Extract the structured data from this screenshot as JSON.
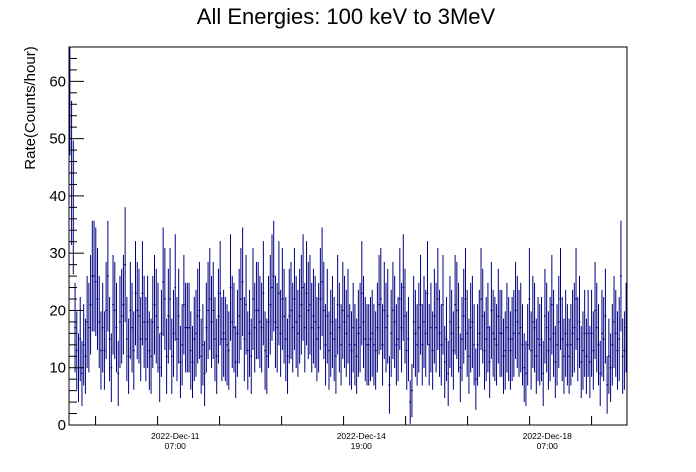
{
  "chart_data": {
    "type": "scatter",
    "title": "All Energies:  100 keV to 3MeV",
    "xlabel": "",
    "ylabel": "Rate(Counts/hour)",
    "x_unit": "hours since 2022-Dec-09 07:00",
    "xlim": [
      0,
      252
    ],
    "ylim": [
      0,
      66
    ],
    "y_ticks": [
      0,
      10,
      20,
      30,
      40,
      50,
      60
    ],
    "x_ticks": [
      {
        "at": 48,
        "date": "2022-Dec-11",
        "time": "07:00"
      },
      {
        "at": 132,
        "date": "2022-Dec-14",
        "time": "19:00"
      },
      {
        "at": 216,
        "date": "2022-Dec-18",
        "time": "07:00"
      }
    ],
    "marker_color": "#000080",
    "error_style": "poisson (sqrt(N)/hour)",
    "series": [
      {
        "values": [
          62,
          44,
          38,
          17,
          13,
          10,
          15,
          9,
          14,
          12,
          18,
          17,
          21,
          26,
          26,
          25,
          22,
          18,
          13,
          17,
          13,
          20,
          26,
          15,
          10,
          21,
          20,
          17,
          9,
          18,
          19,
          21,
          28,
          15,
          12,
          20,
          17,
          13,
          23,
          20,
          19,
          15,
          23,
          18,
          15,
          18,
          13,
          12,
          18,
          21,
          19,
          17,
          10,
          16,
          25,
          22,
          12,
          19,
          22,
          12,
          16,
          24,
          15,
          19,
          11,
          14,
          21,
          17,
          17,
          17,
          13,
          11,
          15,
          16,
          19,
          20,
          12,
          14,
          9,
          17,
          20,
          22,
          18,
          20,
          15,
          12,
          19,
          23,
          15,
          16,
          15,
          14,
          13,
          24,
          18,
          17,
          11,
          16,
          19,
          22,
          25,
          15,
          21,
          13,
          16,
          12,
          22,
          17,
          20,
          20,
          18,
          17,
          23,
          13,
          12,
          18,
          21,
          24,
          26,
          18,
          17,
          23,
          16,
          22,
          19,
          15,
          12,
          19,
          20,
          17,
          22,
          18,
          16,
          19,
          21,
          24,
          17,
          23,
          20,
          21,
          17,
          19,
          18,
          15,
          17,
          22,
          25,
          20,
          14,
          19,
          13,
          16,
          18,
          15,
          12,
          21,
          17,
          14,
          20,
          18,
          16,
          19,
          14,
          13,
          17,
          14,
          12,
          16,
          17,
          23,
          18,
          15,
          14,
          14,
          15,
          16,
          14,
          13,
          17,
          21,
          22,
          14,
          20,
          17,
          19,
          7,
          16,
          20,
          18,
          14,
          15,
          22,
          17,
          24,
          19,
          13,
          15,
          4,
          6,
          18,
          16,
          14,
          17,
          21,
          14,
          18,
          16,
          23,
          14,
          17,
          13,
          19,
          17,
          22,
          16,
          14,
          21,
          11,
          15,
          9,
          18,
          16,
          13,
          21,
          20,
          17,
          10,
          15,
          19,
          22,
          16,
          12,
          17,
          18,
          14,
          8,
          14,
          16,
          22,
          19,
          13,
          15,
          17,
          11,
          20,
          16,
          15,
          14,
          19,
          16,
          16,
          12,
          13,
          17,
          15,
          13,
          15,
          16,
          20,
          18,
          16,
          17,
          14,
          10,
          9,
          14,
          22,
          13,
          18,
          17,
          12,
          15,
          14,
          15,
          9,
          19,
          17,
          13,
          15,
          21,
          16,
          11,
          14,
          18,
          22,
          15,
          12,
          16,
          14,
          12,
          14,
          16,
          17,
          22,
          15,
          18,
          11,
          13,
          16,
          12,
          16,
          11,
          16,
          13,
          20,
          17,
          14,
          9,
          16,
          15,
          19,
          7,
          12,
          10,
          14,
          18,
          16,
          13,
          15,
          26,
          12,
          13,
          17
        ]
      }
    ]
  }
}
